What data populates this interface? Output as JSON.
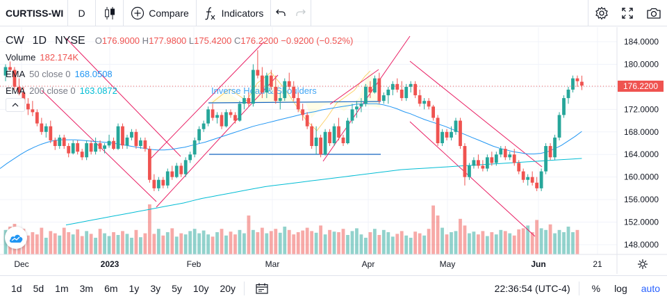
{
  "toolbar": {
    "symbol": "CURTISS-WI",
    "interval": "D",
    "compare_label": "Compare",
    "indicators_label": "Indicators"
  },
  "legend": {
    "ticker": "CW",
    "interval": "1D",
    "exchange": "NYSE",
    "open_label": "O",
    "open": "176.9000",
    "high_label": "H",
    "high": "177.9800",
    "low_label": "L",
    "low": "175.4200",
    "close_label": "C",
    "close": "176.2200",
    "change": "−0.9200 (−0.52%)",
    "volume_label": "Volume",
    "volume": "182.174K",
    "ema50_label": "EMA",
    "ema50_params": "50 close 0",
    "ema50_value": "168.0508",
    "ema200_label": "EMA",
    "ema200_params": "200 close 0",
    "ema200_value": "163.0872"
  },
  "annotation": {
    "pattern_label": "Inverse Head & Shoulders"
  },
  "price_axis": {
    "labels": [
      "184.0000",
      "180.0000",
      "176.0000",
      "172.0000",
      "168.0000",
      "164.0000",
      "160.0000",
      "156.0000",
      "152.0000",
      "148.0000"
    ],
    "current_price": "176.2200"
  },
  "time_axis": {
    "labels": [
      {
        "text": "Dec",
        "bold": false
      },
      {
        "text": "2023",
        "bold": true
      },
      {
        "text": "Feb",
        "bold": false
      },
      {
        "text": "Mar",
        "bold": false
      },
      {
        "text": "Apr",
        "bold": false
      },
      {
        "text": "May",
        "bold": false
      },
      {
        "text": "Jun",
        "bold": true
      },
      {
        "text": "21",
        "bold": false
      }
    ]
  },
  "bottom_bar": {
    "ranges": [
      "1d",
      "5d",
      "1m",
      "3m",
      "6m",
      "1y",
      "3y",
      "5y",
      "10y",
      "20y"
    ],
    "clock": "22:36:54 (UTC-4)",
    "percent_label": "%",
    "log_label": "log",
    "auto_label": "auto"
  },
  "colors": {
    "up": "#26a69a",
    "down": "#ef5350",
    "ema50": "#2196f3",
    "ema200": "#00bcd4",
    "channel": "#e91e63",
    "pattern_fill": "#ffeb3b"
  },
  "icons": [
    "candles-icon",
    "compare-plus-icon",
    "indicators-fx-icon",
    "undo-icon",
    "redo-icon",
    "settings-gear-icon",
    "fullscreen-icon",
    "camera-icon",
    "date-range-icon",
    "axis-settings-icon",
    "logo-cloud-icon",
    "collapse-chevron-icon"
  ],
  "chart_data": {
    "type": "candlestick",
    "y_range": [
      146,
      186
    ],
    "candles": [
      [
        178.0,
        180.0,
        177.0,
        179.5
      ],
      [
        179.5,
        180.5,
        178.8,
        179.0
      ],
      [
        179.0,
        179.5,
        175.5,
        176.0
      ],
      [
        176.0,
        177.5,
        174.5,
        175.0
      ],
      [
        175.0,
        176.0,
        172.5,
        173.0
      ],
      [
        173.0,
        174.0,
        171.0,
        172.0
      ],
      [
        172.0,
        173.5,
        170.8,
        171.5
      ],
      [
        171.5,
        172.0,
        169.0,
        169.5
      ],
      [
        169.5,
        170.5,
        167.5,
        168.0
      ],
      [
        168.0,
        169.5,
        167.0,
        169.0
      ],
      [
        169.0,
        170.0,
        166.0,
        166.5
      ],
      [
        166.5,
        167.0,
        164.8,
        165.5
      ],
      [
        165.5,
        167.5,
        165.0,
        167.0
      ],
      [
        167.0,
        167.5,
        165.0,
        165.5
      ],
      [
        165.5,
        166.0,
        163.5,
        164.2
      ],
      [
        164.2,
        166.5,
        164.0,
        166.0
      ],
      [
        166.0,
        166.5,
        164.0,
        164.5
      ],
      [
        164.5,
        165.0,
        163.0,
        163.5
      ],
      [
        163.5,
        166.5,
        163.0,
        166.0
      ],
      [
        166.0,
        166.5,
        164.0,
        164.5
      ],
      [
        164.5,
        167.0,
        164.0,
        166.0
      ],
      [
        166.0,
        166.5,
        164.5,
        165.0
      ],
      [
        165.0,
        166.0,
        164.2,
        165.6
      ],
      [
        165.6,
        167.5,
        165.2,
        166.4
      ],
      [
        166.4,
        167.0,
        164.8,
        165.0
      ],
      [
        165.0,
        169.5,
        164.8,
        169.0
      ],
      [
        169.0,
        169.5,
        165.0,
        165.6
      ],
      [
        165.6,
        167.5,
        165.0,
        167.0
      ],
      [
        167.0,
        168.5,
        166.5,
        168.0
      ],
      [
        168.0,
        168.5,
        165.0,
        165.5
      ],
      [
        165.5,
        167.0,
        165.0,
        166.5
      ],
      [
        166.5,
        167.0,
        164.5,
        165.0
      ],
      [
        165.0,
        165.5,
        159.0,
        159.5
      ],
      [
        159.5,
        160.5,
        157.5,
        158.0
      ],
      [
        158.0,
        160.0,
        157.5,
        159.5
      ],
      [
        159.5,
        160.0,
        158.0,
        158.5
      ],
      [
        158.5,
        161.5,
        158.0,
        161.0
      ],
      [
        161.0,
        162.0,
        159.5,
        160.0
      ],
      [
        160.0,
        162.5,
        159.8,
        162.0
      ],
      [
        162.0,
        162.5,
        160.0,
        160.5
      ],
      [
        160.5,
        163.5,
        160.0,
        163.0
      ],
      [
        163.0,
        164.5,
        162.5,
        164.0
      ],
      [
        164.0,
        167.0,
        163.5,
        166.5
      ],
      [
        166.5,
        169.0,
        166.0,
        168.5
      ],
      [
        168.5,
        170.0,
        168.0,
        169.5
      ],
      [
        169.5,
        172.5,
        169.0,
        172.0
      ],
      [
        172.0,
        173.0,
        170.0,
        170.5
      ],
      [
        170.5,
        171.5,
        169.5,
        171.0
      ],
      [
        171.0,
        171.5,
        168.5,
        169.0
      ],
      [
        169.0,
        172.0,
        168.8,
        171.5
      ],
      [
        171.5,
        172.0,
        170.5,
        171.0
      ],
      [
        171.0,
        171.5,
        169.5,
        170.0
      ],
      [
        170.0,
        173.5,
        169.8,
        173.0
      ],
      [
        173.0,
        174.5,
        172.0,
        174.0
      ],
      [
        174.0,
        175.0,
        172.5,
        173.0
      ],
      [
        173.0,
        180.0,
        172.5,
        179.0
      ],
      [
        179.0,
        182.5,
        177.5,
        178.0
      ],
      [
        178.0,
        179.5,
        174.0,
        175.0
      ],
      [
        175.0,
        178.5,
        174.0,
        178.0
      ],
      [
        178.0,
        179.0,
        175.5,
        176.0
      ],
      [
        176.0,
        178.0,
        173.0,
        173.5
      ],
      [
        173.5,
        175.0,
        172.0,
        174.0
      ],
      [
        174.0,
        177.5,
        173.5,
        177.0
      ],
      [
        177.0,
        178.5,
        175.5,
        176.0
      ],
      [
        176.0,
        177.0,
        173.5,
        174.0
      ],
      [
        174.0,
        175.0,
        171.5,
        172.0
      ],
      [
        172.0,
        173.0,
        170.0,
        171.0
      ],
      [
        171.0,
        171.5,
        168.5,
        169.0
      ],
      [
        169.0,
        169.5,
        165.0,
        165.5
      ],
      [
        165.5,
        169.0,
        164.0,
        167.0
      ],
      [
        167.0,
        167.5,
        163.5,
        164.0
      ],
      [
        164.0,
        168.5,
        163.8,
        168.0
      ],
      [
        168.0,
        168.5,
        165.5,
        166.0
      ],
      [
        166.0,
        169.5,
        165.5,
        169.0
      ],
      [
        169.0,
        170.5,
        166.5,
        167.0
      ],
      [
        167.0,
        167.5,
        165.5,
        166.0
      ],
      [
        166.0,
        170.5,
        165.8,
        170.0
      ],
      [
        170.0,
        173.0,
        169.5,
        172.0
      ],
      [
        172.0,
        173.5,
        170.5,
        172.5
      ],
      [
        172.5,
        174.0,
        171.5,
        173.0
      ],
      [
        173.0,
        176.5,
        172.5,
        176.0
      ],
      [
        176.0,
        177.0,
        174.0,
        175.0
      ],
      [
        175.0,
        178.0,
        174.8,
        177.5
      ],
      [
        177.5,
        178.5,
        173.0,
        173.5
      ],
      [
        173.5,
        175.0,
        173.0,
        174.5
      ],
      [
        174.5,
        176.0,
        173.0,
        175.5
      ],
      [
        175.5,
        177.0,
        174.5,
        176.5
      ],
      [
        176.5,
        177.5,
        175.0,
        175.5
      ],
      [
        175.5,
        177.0,
        173.5,
        174.0
      ],
      [
        174.0,
        176.5,
        173.5,
        176.0
      ],
      [
        176.0,
        177.0,
        175.0,
        176.5
      ],
      [
        176.5,
        177.0,
        174.0,
        174.5
      ],
      [
        174.5,
        175.5,
        172.5,
        173.0
      ],
      [
        173.0,
        174.0,
        172.0,
        173.5
      ],
      [
        173.5,
        174.0,
        172.0,
        172.5
      ],
      [
        172.5,
        172.8,
        170.0,
        170.5
      ],
      [
        170.5,
        171.0,
        165.5,
        166.0
      ],
      [
        166.0,
        168.5,
        165.5,
        168.0
      ],
      [
        168.0,
        168.5,
        166.5,
        167.0
      ],
      [
        167.0,
        169.0,
        166.5,
        168.0
      ],
      [
        168.0,
        170.5,
        167.5,
        170.0
      ],
      [
        170.0,
        170.5,
        165.0,
        165.5
      ],
      [
        165.5,
        166.0,
        158.5,
        160.0
      ],
      [
        160.0,
        162.5,
        159.5,
        162.0
      ],
      [
        162.0,
        163.5,
        161.5,
        163.0
      ],
      [
        163.0,
        164.0,
        161.5,
        162.0
      ],
      [
        162.0,
        163.0,
        161.0,
        161.5
      ],
      [
        161.5,
        164.0,
        161.0,
        163.5
      ],
      [
        163.5,
        164.5,
        162.0,
        162.5
      ],
      [
        162.5,
        164.5,
        162.0,
        164.0
      ],
      [
        164.0,
        165.5,
        163.5,
        165.0
      ],
      [
        165.0,
        165.5,
        163.0,
        163.5
      ],
      [
        163.5,
        164.5,
        163.0,
        164.0
      ],
      [
        164.0,
        165.0,
        162.0,
        162.5
      ],
      [
        162.5,
        163.0,
        160.5,
        161.0
      ],
      [
        161.0,
        161.5,
        159.0,
        159.5
      ],
      [
        159.5,
        160.5,
        158.5,
        160.0
      ],
      [
        160.0,
        161.0,
        158.5,
        159.0
      ],
      [
        159.0,
        160.0,
        157.5,
        158.0
      ],
      [
        158.0,
        161.5,
        157.5,
        161.0
      ],
      [
        161.0,
        166.0,
        160.5,
        165.5
      ],
      [
        165.5,
        166.0,
        163.0,
        163.5
      ],
      [
        163.5,
        167.5,
        163.0,
        167.0
      ],
      [
        167.0,
        171.5,
        166.5,
        171.0
      ],
      [
        171.0,
        174.5,
        170.5,
        174.0
      ],
      [
        174.0,
        176.0,
        173.0,
        175.5
      ],
      [
        175.5,
        178.0,
        175.0,
        177.5
      ],
      [
        177.5,
        178.0,
        176.0,
        177.0
      ],
      [
        176.9,
        177.98,
        175.42,
        176.22
      ]
    ],
    "volumes": [
      44,
      50,
      55,
      38,
      46,
      34,
      40,
      36,
      48,
      30,
      42,
      38,
      34,
      48,
      40,
      36,
      45,
      33,
      42,
      37,
      30,
      46,
      38,
      33,
      40,
      35,
      42,
      37,
      30,
      44,
      31,
      38,
      90,
      37,
      46,
      34,
      40,
      47,
      32,
      38,
      36,
      42,
      46,
      38,
      43,
      36,
      32,
      40,
      46,
      34,
      41,
      36,
      44,
      38,
      70,
      44,
      40,
      48,
      38,
      42,
      46,
      39,
      50,
      44,
      36,
      40,
      43,
      48,
      42,
      39,
      52,
      36,
      44,
      41,
      40,
      46,
      35,
      42,
      47,
      36,
      30,
      40,
      46,
      35,
      44,
      40,
      32,
      37,
      42,
      34,
      30,
      41,
      38,
      34,
      46,
      88,
      70,
      48,
      36,
      40,
      42,
      64,
      52,
      38,
      41,
      36,
      42,
      33,
      40,
      36,
      44,
      42,
      38,
      34,
      45,
      47,
      52,
      40,
      62,
      47,
      44,
      54,
      38,
      44,
      40,
      50,
      40,
      44
    ],
    "ema50": [
      161.5,
      162.4,
      163.2,
      164.0,
      164.7,
      165.3,
      165.8,
      166.2,
      166.5,
      166.6,
      166.6,
      166.6,
      166.5,
      166.4,
      166.3,
      166.2,
      166.1,
      165.9,
      165.7,
      165.5,
      165.3,
      165.1,
      164.9,
      164.8,
      164.8,
      164.9,
      165.1,
      165.3,
      165.6,
      165.9,
      166.2,
      166.6,
      167.0,
      167.4,
      167.8,
      168.2,
      168.6,
      169.0,
      169.3,
      169.6,
      169.9,
      170.2,
      170.5,
      170.8,
      171.1,
      171.4,
      171.6,
      171.9,
      172.1,
      172.3,
      172.5,
      172.7,
      172.9,
      173.0,
      173.0,
      173.0,
      172.8,
      172.5,
      172.1,
      171.6,
      171.2,
      170.7,
      170.2,
      169.8,
      169.4,
      169.0,
      168.5,
      168.0,
      167.5,
      167.0,
      166.5,
      166.0,
      165.5,
      165.1,
      164.8,
      164.5,
      164.3,
      164.1,
      164.1,
      164.2,
      164.5,
      165.0,
      165.6,
      166.4,
      167.2,
      168.1
    ],
    "ema200": [
      151.5,
      151.8,
      152.1,
      152.4,
      152.7,
      153.0,
      153.3,
      153.6,
      153.9,
      154.2,
      154.5,
      154.8,
      155.1,
      155.4,
      155.8,
      156.2,
      156.5,
      156.8,
      157.1,
      157.4,
      157.7,
      158.0,
      158.3,
      158.5,
      158.7,
      158.9,
      159.1,
      159.3,
      159.5,
      159.7,
      159.9,
      160.1,
      160.3,
      160.5,
      160.7,
      160.9,
      161.1,
      161.3,
      161.4,
      161.5,
      161.6,
      161.7,
      161.8,
      161.9,
      162.0,
      162.1,
      162.2,
      162.3,
      162.4,
      162.5,
      162.6,
      162.7,
      162.8,
      162.9,
      163.0,
      163.1,
      163.2,
      163.3
    ]
  }
}
